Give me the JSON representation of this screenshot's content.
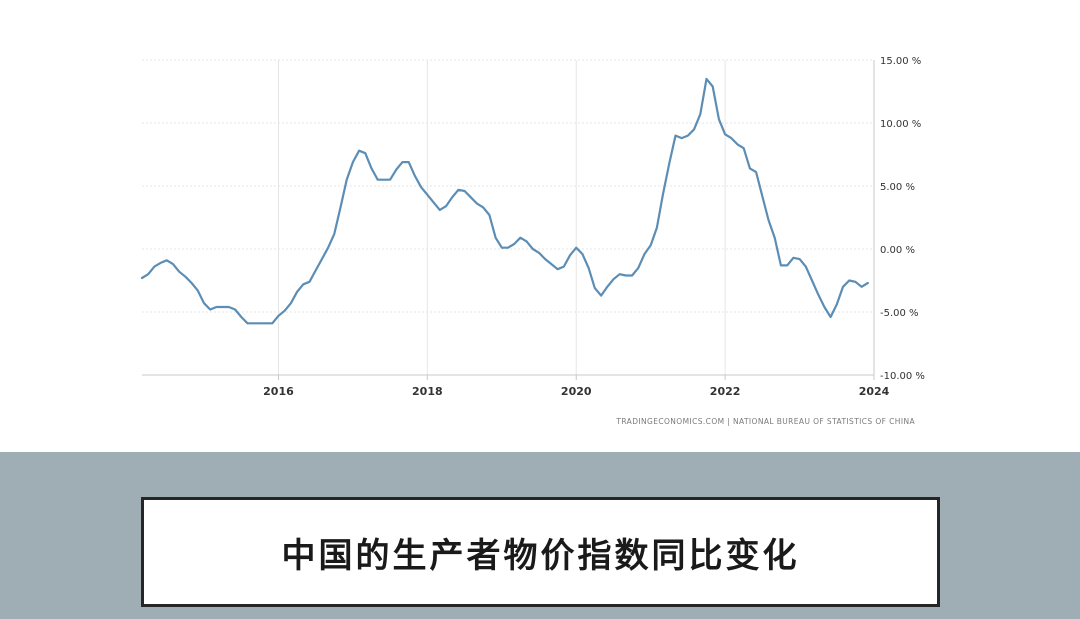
{
  "caption": "中国的生产者物价指数同比变化",
  "source": "TRADINGECONOMICS.COM | NATIONAL BUREAU OF STATISTICS OF CHINA",
  "colors": {
    "line": "#5b8db5",
    "grid": "#e6e6e6",
    "axis": "#c8c8c8",
    "band": "#9eaeb4",
    "caption_border": "#262626"
  },
  "chart_data": {
    "type": "line",
    "title": "",
    "xlabel": "",
    "ylabel": "",
    "y_unit": "%",
    "ylim": [
      -10,
      15
    ],
    "yticks": [
      15,
      10,
      5,
      0,
      -5,
      -10
    ],
    "ytick_labels": [
      "15.00 %",
      "10.00 %",
      "5.00 %",
      "0.00 %",
      "-5.00 %",
      "-10.00 %"
    ],
    "xlim": [
      "2014-03",
      "2024-01"
    ],
    "xticks": [
      "2016-01",
      "2018-01",
      "2020-01",
      "2022-01",
      "2024-01"
    ],
    "xtick_labels": [
      "2016",
      "2018",
      "2020",
      "2022",
      "2024"
    ],
    "grid": true,
    "series": [
      {
        "x": [
          "2014-03",
          "2014-04",
          "2014-05",
          "2014-06",
          "2014-07",
          "2014-08",
          "2014-09",
          "2014-10",
          "2014-11",
          "2014-12",
          "2015-01",
          "2015-02",
          "2015-03",
          "2015-04",
          "2015-05",
          "2015-06",
          "2015-07",
          "2015-08",
          "2015-09",
          "2015-10",
          "2015-11",
          "2015-12",
          "2016-01",
          "2016-02",
          "2016-03",
          "2016-04",
          "2016-05",
          "2016-06",
          "2016-07",
          "2016-08",
          "2016-09",
          "2016-10",
          "2016-11",
          "2016-12",
          "2017-01",
          "2017-02",
          "2017-03",
          "2017-04",
          "2017-05",
          "2017-06",
          "2017-07",
          "2017-08",
          "2017-09",
          "2017-10",
          "2017-11",
          "2017-12",
          "2018-01",
          "2018-02",
          "2018-03",
          "2018-04",
          "2018-05",
          "2018-06",
          "2018-07",
          "2018-08",
          "2018-09",
          "2018-10",
          "2018-11",
          "2018-12",
          "2019-01",
          "2019-02",
          "2019-03",
          "2019-04",
          "2019-05",
          "2019-06",
          "2019-07",
          "2019-08",
          "2019-09",
          "2019-10",
          "2019-11",
          "2019-12",
          "2020-01",
          "2020-02",
          "2020-03",
          "2020-04",
          "2020-05",
          "2020-06",
          "2020-07",
          "2020-08",
          "2020-09",
          "2020-10",
          "2020-11",
          "2020-12",
          "2021-01",
          "2021-02",
          "2021-03",
          "2021-04",
          "2021-05",
          "2021-06",
          "2021-07",
          "2021-08",
          "2021-09",
          "2021-10",
          "2021-11",
          "2021-12",
          "2022-01",
          "2022-02",
          "2022-03",
          "2022-04",
          "2022-05",
          "2022-06",
          "2022-07",
          "2022-08",
          "2022-09",
          "2022-10",
          "2022-11",
          "2022-12",
          "2023-01",
          "2023-02",
          "2023-03",
          "2023-04",
          "2023-05",
          "2023-06",
          "2023-07",
          "2023-08",
          "2023-09",
          "2023-10",
          "2023-11",
          "2023-12"
        ],
        "values": [
          -2.3,
          -2.0,
          -1.4,
          -1.1,
          -0.9,
          -1.2,
          -1.8,
          -2.2,
          -2.7,
          -3.3,
          -4.3,
          -4.8,
          -4.6,
          -4.6,
          -4.6,
          -4.8,
          -5.4,
          -5.9,
          -5.9,
          -5.9,
          -5.9,
          -5.9,
          -5.3,
          -4.9,
          -4.3,
          -3.4,
          -2.8,
          -2.6,
          -1.7,
          -0.8,
          0.1,
          1.2,
          3.3,
          5.5,
          6.9,
          7.8,
          7.6,
          6.4,
          5.5,
          5.5,
          5.5,
          6.3,
          6.9,
          6.9,
          5.8,
          4.9,
          4.3,
          3.7,
          3.1,
          3.4,
          4.1,
          4.7,
          4.6,
          4.1,
          3.6,
          3.3,
          2.7,
          0.9,
          0.1,
          0.1,
          0.4,
          0.9,
          0.6,
          0.0,
          -0.3,
          -0.8,
          -1.2,
          -1.6,
          -1.4,
          -0.5,
          0.1,
          -0.4,
          -1.5,
          -3.1,
          -3.7,
          -3.0,
          -2.4,
          -2.0,
          -2.1,
          -2.1,
          -1.5,
          -0.4,
          0.3,
          1.7,
          4.4,
          6.8,
          9.0,
          8.8,
          9.0,
          9.5,
          10.7,
          13.5,
          12.9,
          10.3,
          9.1,
          8.8,
          8.3,
          8.0,
          6.4,
          6.1,
          4.2,
          2.3,
          0.9,
          -1.3,
          -1.3,
          -0.7,
          -0.8,
          -1.4,
          -2.5,
          -3.6,
          -4.6,
          -5.4,
          -4.4,
          -3.0,
          -2.5,
          -2.6,
          -3.0,
          -2.7
        ]
      }
    ]
  }
}
